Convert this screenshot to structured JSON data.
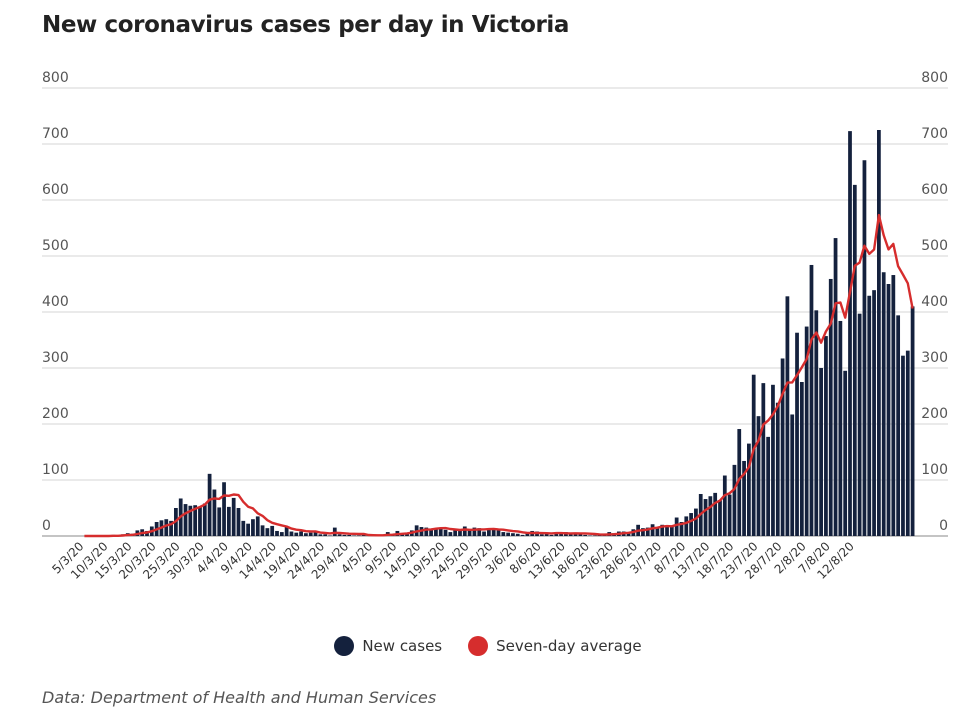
{
  "chart_data": {
    "type": "bar",
    "title": "New coronavirus cases per day in Victoria",
    "start_date": "2020-03-05",
    "end_date": "2020-08-12",
    "ylim": [
      0,
      800
    ],
    "yticks": [
      0,
      100,
      200,
      300,
      400,
      500,
      600,
      700,
      800
    ],
    "x_tick_labels": [
      "5/3/20",
      "10/3/20",
      "15/3/20",
      "20/3/20",
      "25/3/20",
      "30/3/20",
      "4/4/20",
      "9/4/20",
      "14/4/20",
      "19/4/20",
      "24/4/20",
      "29/4/20",
      "4/5/20",
      "9/5/20",
      "14/5/20",
      "19/5/20",
      "24/5/20",
      "29/5/20",
      "3/6/20",
      "8/6/20",
      "13/6/20",
      "18/6/20",
      "23/6/20",
      "28/6/20",
      "3/7/20",
      "8/7/20",
      "13/7/20",
      "18/7/20",
      "23/7/20",
      "28/7/20",
      "2/8/20",
      "7/8/20",
      "12/8/20"
    ],
    "grid": true,
    "legend_position": "bottom-center",
    "series": [
      {
        "name": "New cases",
        "color": "#14213d",
        "type": "bar",
        "values": [
          0,
          0,
          0,
          0,
          0,
          0,
          2,
          1,
          3,
          5,
          4,
          10,
          12,
          9,
          17,
          25,
          28,
          30,
          27,
          50,
          67,
          57,
          54,
          55,
          52,
          58,
          111,
          83,
          51,
          96,
          52,
          68,
          50,
          27,
          22,
          30,
          35,
          19,
          14,
          18,
          9,
          7,
          17,
          8,
          6,
          8,
          5,
          6,
          7,
          3,
          3,
          1,
          15,
          3,
          2,
          2,
          1,
          1,
          2,
          1,
          1,
          1,
          2,
          7,
          2,
          9,
          5,
          6,
          10,
          19,
          16,
          15,
          11,
          14,
          13,
          11,
          7,
          10,
          9,
          17,
          10,
          15,
          14,
          8,
          13,
          12,
          10,
          7,
          6,
          5,
          4,
          2,
          5,
          9,
          8,
          3,
          4,
          2,
          5,
          5,
          7,
          6,
          5,
          3,
          2,
          1,
          1,
          2,
          4,
          7,
          5,
          8,
          8,
          6,
          12,
          20,
          14,
          15,
          21,
          16,
          20,
          18,
          17,
          33,
          25,
          35,
          41,
          49,
          75,
          66,
          71,
          77,
          64,
          108,
          74,
          127,
          191,
          134,
          165,
          288,
          214,
          273,
          177,
          270,
          238,
          317,
          428,
          217,
          363,
          275,
          374,
          484,
          403,
          300,
          357,
          459,
          532,
          384,
          295,
          723,
          627,
          397,
          671,
          429,
          439,
          725,
          471,
          450,
          466,
          394,
          322,
          331,
          410
        ]
      },
      {
        "name": "Seven-day average",
        "color": "#d62d2d",
        "type": "line"
      }
    ]
  },
  "legend": {
    "new_cases": "New cases",
    "seven_day_average": "Seven-day average"
  },
  "source": "Data: Department of Health and Human Services"
}
